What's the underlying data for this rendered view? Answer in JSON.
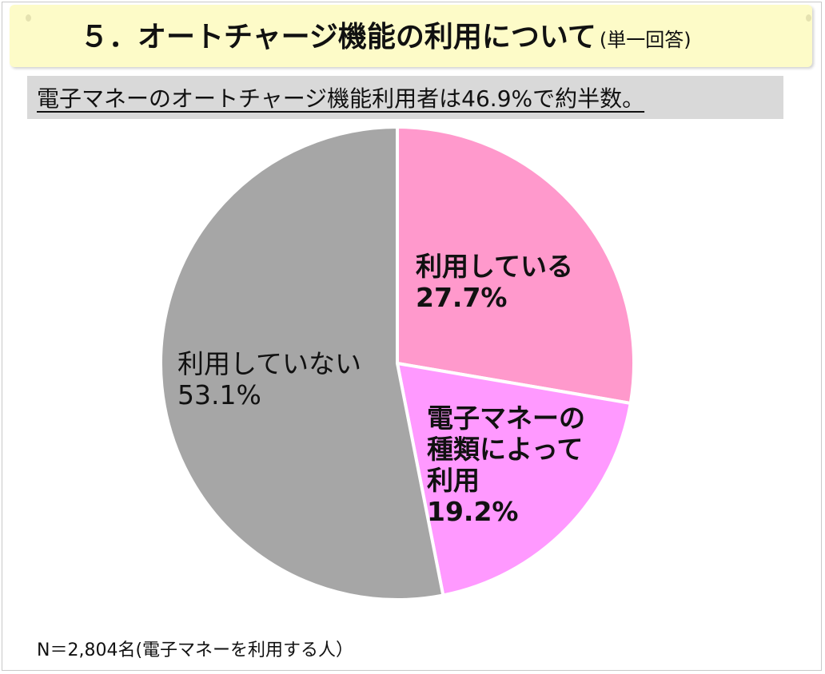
{
  "header": {
    "title": "５．オートチャージ機能の利用について",
    "note": "(単一回答)"
  },
  "summary": "電子マネーのオートチャージ機能利用者は46.9%で約半数。",
  "footnote": "N＝2,804名(電子マネーを利用する人）",
  "chart_data": {
    "type": "pie",
    "title": "",
    "slices": [
      {
        "label_lines": [
          "利用している"
        ],
        "value": 27.7,
        "value_text": "27.7%",
        "color": "#ff99cc"
      },
      {
        "label_lines": [
          "電子マネーの",
          "種類によって",
          "利用"
        ],
        "value": 19.2,
        "value_text": "19.2%",
        "color": "#ff99ff"
      },
      {
        "label_lines": [
          "利用していない"
        ],
        "value": 53.1,
        "value_text": "53.1%",
        "color": "#a6a6a6"
      }
    ]
  }
}
